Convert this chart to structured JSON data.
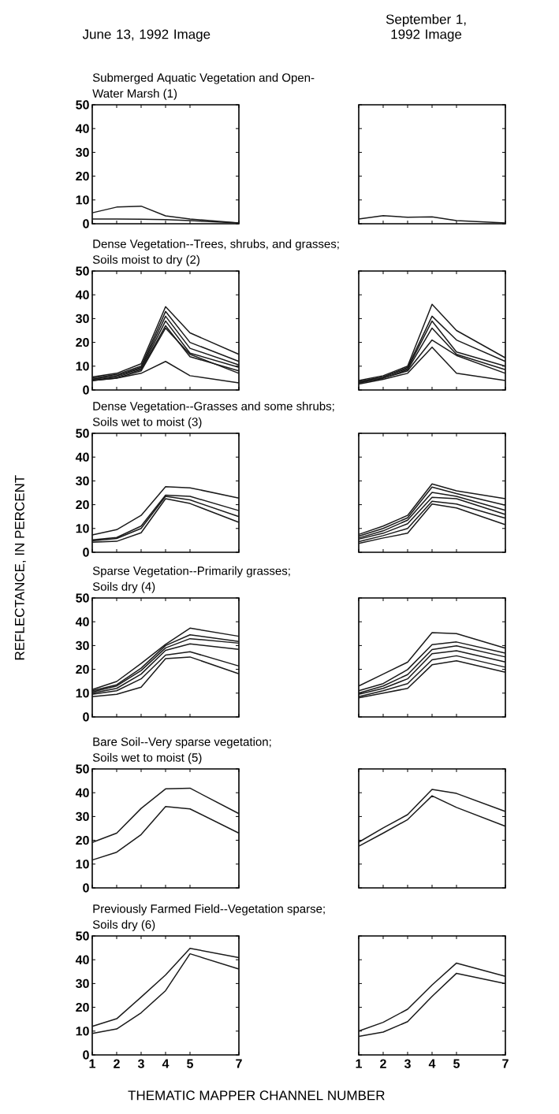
{
  "chart_data": [
    {
      "type": "line",
      "title": "Submerged Aquatic Vegetation and Open-",
      "subtitle": "Water Marsh (1)",
      "annotations": [
        "June 13, 1992 Image"
      ],
      "x": [
        1,
        2,
        3,
        4,
        5,
        7
      ],
      "xlim": [
        1,
        7
      ],
      "ylim": [
        0,
        50
      ],
      "xticks": [
        1,
        2,
        3,
        4,
        5,
        7
      ],
      "yticks": [
        0,
        10,
        20,
        30,
        40,
        50
      ],
      "tick_labels": "y",
      "series": [
        {
          "color": "#1a1a1a",
          "values": [
            4.6,
            7,
            7.4,
            3.3,
            2,
            0.3
          ]
        },
        {
          "color": "#1a1a1a",
          "values": [
            2,
            2,
            1.9,
            1.7,
            1.3,
            0.3
          ]
        }
      ]
    },
    {
      "type": "line",
      "annotations": [
        "September 1, 1992 Image"
      ],
      "x": [
        1,
        2,
        3,
        4,
        5,
        7
      ],
      "xlim": [
        1,
        7
      ],
      "ylim": [
        0,
        50
      ],
      "xticks": [
        1,
        2,
        3,
        4,
        5,
        7
      ],
      "yticks": [
        0,
        10,
        20,
        30,
        40,
        50
      ],
      "tick_labels": false,
      "series": [
        {
          "color": "#1a1a1a",
          "values": [
            2,
            3.4,
            2.7,
            2.9,
            1.3,
            0.3
          ]
        }
      ]
    },
    {
      "type": "line",
      "title": "Dense Vegetation--Trees, shrubs, and grasses;",
      "subtitle": "Soils moist to dry (2)",
      "x": [
        1,
        2,
        3,
        4,
        5,
        7
      ],
      "xlim": [
        1,
        7
      ],
      "ylim": [
        0,
        50
      ],
      "xticks": [
        1,
        2,
        3,
        4,
        5,
        7
      ],
      "yticks": [
        0,
        10,
        20,
        30,
        40,
        50
      ],
      "tick_labels": "y",
      "series": [
        {
          "color": "#1a1a1a",
          "values": [
            5.5,
            7,
            11,
            35,
            24,
            15
          ]
        },
        {
          "color": "#1a1a1a",
          "values": [
            5,
            6.5,
            10,
            33,
            20,
            12
          ]
        },
        {
          "color": "#1a1a1a",
          "values": [
            4.5,
            6,
            9.5,
            31,
            17.5,
            10.5
          ]
        },
        {
          "color": "#1a1a1a",
          "values": [
            4.5,
            6,
            9,
            29,
            15.5,
            9.5
          ]
        },
        {
          "color": "#1a1a1a",
          "values": [
            4,
            5.5,
            8.5,
            27,
            14,
            8
          ]
        },
        {
          "color": "#1a1a1a",
          "values": [
            4,
            5,
            8,
            26,
            15,
            7
          ]
        },
        {
          "color": "#1a1a1a",
          "values": [
            4,
            5,
            7,
            12,
            6,
            3
          ]
        }
      ]
    },
    {
      "type": "line",
      "x": [
        1,
        2,
        3,
        4,
        5,
        7
      ],
      "xlim": [
        1,
        7
      ],
      "ylim": [
        0,
        50
      ],
      "xticks": [
        1,
        2,
        3,
        4,
        5,
        7
      ],
      "yticks": [
        0,
        10,
        20,
        30,
        40,
        50
      ],
      "tick_labels": false,
      "series": [
        {
          "color": "#1a1a1a",
          "values": [
            4,
            6,
            10,
            36,
            25,
            13.5
          ]
        },
        {
          "color": "#1a1a1a",
          "values": [
            3.5,
            5.5,
            9.5,
            31,
            21,
            12
          ]
        },
        {
          "color": "#1a1a1a",
          "values": [
            3.5,
            5.5,
            9,
            29,
            16,
            10
          ]
        },
        {
          "color": "#1a1a1a",
          "values": [
            3,
            5,
            8.5,
            26,
            15,
            8.5
          ]
        },
        {
          "color": "#1a1a1a",
          "values": [
            3,
            5,
            8,
            21,
            14.5,
            7
          ]
        },
        {
          "color": "#1a1a1a",
          "values": [
            2.5,
            4.5,
            7,
            18,
            7,
            4
          ]
        }
      ]
    },
    {
      "type": "line",
      "title": "Dense Vegetation--Grasses and some shrubs;",
      "subtitle": "Soils wet to moist (3)",
      "ylabel": "REFLECTANCE, IN PERCENT",
      "x": [
        1,
        2,
        3,
        4,
        5,
        7
      ],
      "xlim": [
        1,
        7
      ],
      "ylim": [
        0,
        50
      ],
      "xticks": [
        1,
        2,
        3,
        4,
        5,
        7
      ],
      "yticks": [
        0,
        10,
        20,
        30,
        40,
        50
      ],
      "tick_labels": "y",
      "series": [
        {
          "color": "#1a1a1a",
          "values": [
            7.3,
            9.5,
            15.5,
            27.6,
            27.1,
            22.8
          ]
        },
        {
          "color": "#1a1a1a",
          "values": [
            5.2,
            6.2,
            11,
            24,
            23.5,
            17.5
          ]
        },
        {
          "color": "#1a1a1a",
          "values": [
            4.8,
            5.8,
            10,
            23.5,
            22,
            15
          ]
        },
        {
          "color": "#1a1a1a",
          "values": [
            4.2,
            4.6,
            8.2,
            22.5,
            20.5,
            12.6
          ]
        }
      ]
    },
    {
      "type": "line",
      "x": [
        1,
        2,
        3,
        4,
        5,
        7
      ],
      "xlim": [
        1,
        7
      ],
      "ylim": [
        0,
        50
      ],
      "xticks": [
        1,
        2,
        3,
        4,
        5,
        7
      ],
      "yticks": [
        0,
        10,
        20,
        30,
        40,
        50
      ],
      "tick_labels": false,
      "series": [
        {
          "color": "#1a1a1a",
          "values": [
            7.5,
            11,
            15.5,
            28.7,
            25.8,
            22.5
          ]
        },
        {
          "color": "#1a1a1a",
          "values": [
            6.8,
            10,
            14.5,
            27.4,
            24.7,
            19.8
          ]
        },
        {
          "color": "#1a1a1a",
          "values": [
            6,
            9,
            13.5,
            25.2,
            23.5,
            17.6
          ]
        },
        {
          "color": "#1a1a1a",
          "values": [
            5.5,
            8,
            12,
            23.1,
            22.5,
            15.9
          ]
        },
        {
          "color": "#1a1a1a",
          "values": [
            4.5,
            7,
            10,
            21.4,
            20.3,
            14.3
          ]
        },
        {
          "color": "#1a1a1a",
          "values": [
            3.7,
            6,
            8,
            20.3,
            18.6,
            11.6
          ]
        }
      ]
    },
    {
      "type": "line",
      "title": "Sparse Vegetation--Primarily grasses;",
      "subtitle": "Soils dry (4)",
      "x": [
        1,
        2,
        3,
        4,
        5,
        7
      ],
      "xlim": [
        1,
        7
      ],
      "ylim": [
        0,
        50
      ],
      "xticks": [
        1,
        2,
        3,
        4,
        5,
        7
      ],
      "yticks": [
        0,
        10,
        20,
        30,
        40,
        50
      ],
      "tick_labels": "y",
      "series": [
        {
          "color": "#1a1a1a",
          "values": [
            11.5,
            14.9,
            22.5,
            30.5,
            37.3,
            33.9
          ]
        },
        {
          "color": "#1a1a1a",
          "values": [
            11,
            13.5,
            20.5,
            30,
            34.5,
            31.7
          ]
        },
        {
          "color": "#1a1a1a",
          "values": [
            10.5,
            13,
            19.5,
            29,
            32.9,
            31
          ]
        },
        {
          "color": "#1a1a1a",
          "values": [
            10,
            12,
            18,
            28,
            30.7,
            28.4
          ]
        },
        {
          "color": "#1a1a1a",
          "values": [
            9.5,
            11,
            16,
            26,
            27.4,
            21.4
          ]
        },
        {
          "color": "#1a1a1a",
          "values": [
            8.5,
            9.5,
            12.5,
            24.5,
            25.2,
            18.1
          ]
        }
      ]
    },
    {
      "type": "line",
      "x": [
        1,
        2,
        3,
        4,
        5,
        7
      ],
      "xlim": [
        1,
        7
      ],
      "ylim": [
        0,
        50
      ],
      "xticks": [
        1,
        2,
        3,
        4,
        5,
        7
      ],
      "yticks": [
        0,
        10,
        20,
        30,
        40,
        50
      ],
      "tick_labels": false,
      "series": [
        {
          "color": "#1a1a1a",
          "values": [
            13,
            18,
            23,
            35.4,
            35,
            28.9
          ]
        },
        {
          "color": "#1a1a1a",
          "values": [
            11,
            14,
            19.9,
            30.4,
            31.5,
            26.8
          ]
        },
        {
          "color": "#1a1a1a",
          "values": [
            10,
            13,
            17.8,
            28.3,
            29.9,
            25.2
          ]
        },
        {
          "color": "#1a1a1a",
          "values": [
            9.5,
            12,
            16,
            26.6,
            27.8,
            23.1
          ]
        },
        {
          "color": "#1a1a1a",
          "values": [
            8.5,
            11,
            14,
            24,
            25.7,
            20.9
          ]
        },
        {
          "color": "#1a1a1a",
          "values": [
            8,
            10,
            12,
            21.9,
            23.6,
            18.8
          ]
        }
      ]
    },
    {
      "type": "line",
      "title": "Bare Soil--Very sparse vegetation;",
      "subtitle": "Soils wet to moist (5)",
      "x": [
        1,
        2,
        3,
        4,
        5,
        7
      ],
      "xlim": [
        1,
        7
      ],
      "ylim": [
        0,
        50
      ],
      "xticks": [
        1,
        2,
        3,
        4,
        5,
        7
      ],
      "yticks": [
        0,
        10,
        20,
        30,
        40,
        50
      ],
      "tick_labels": "y",
      "series": [
        {
          "color": "#1a1a1a",
          "values": [
            19.1,
            23,
            33.4,
            41.6,
            41.9,
            31.2
          ]
        },
        {
          "color": "#1a1a1a",
          "values": [
            11.7,
            15,
            22.4,
            34.2,
            33.2,
            23
          ]
        }
      ]
    },
    {
      "type": "line",
      "x": [
        1,
        2,
        3,
        4,
        5,
        7
      ],
      "xlim": [
        1,
        7
      ],
      "ylim": [
        0,
        50
      ],
      "xticks": [
        1,
        2,
        3,
        4,
        5,
        7
      ],
      "yticks": [
        0,
        10,
        20,
        30,
        40,
        50
      ],
      "tick_labels": false,
      "series": [
        {
          "color": "#1a1a1a",
          "values": [
            19.2,
            25.2,
            30.8,
            41.4,
            39.7,
            32.1
          ]
        },
        {
          "color": "#1a1a1a",
          "values": [
            17.5,
            23,
            28.7,
            38.7,
            33.8,
            25.9
          ]
        }
      ]
    },
    {
      "type": "line",
      "title": "Previously Farmed Field--Vegetation sparse;",
      "subtitle": "Soils dry (6)",
      "xlabel": "THEMATIC MAPPER CHANNEL NUMBER",
      "x": [
        1,
        2,
        3,
        4,
        5,
        7
      ],
      "xlim": [
        1,
        7
      ],
      "ylim": [
        0,
        50
      ],
      "xticks": [
        1,
        2,
        3,
        4,
        5,
        7
      ],
      "yticks": [
        0,
        10,
        20,
        30,
        40,
        50
      ],
      "series": [
        {
          "color": "#1a1a1a",
          "values": [
            12,
            15.2,
            24.3,
            33.6,
            44.8,
            40.9
          ]
        },
        {
          "color": "#1a1a1a",
          "values": [
            9,
            10.9,
            17.7,
            27,
            42.5,
            36.1
          ]
        }
      ]
    },
    {
      "type": "line",
      "x": [
        1,
        2,
        3,
        4,
        5,
        7
      ],
      "xlim": [
        1,
        7
      ],
      "ylim": [
        0,
        50
      ],
      "xticks": [
        1,
        2,
        3,
        4,
        5,
        7
      ],
      "yticks": [
        0,
        10,
        20,
        30,
        40,
        50
      ],
      "tick_labels": "x",
      "series": [
        {
          "color": "#1a1a1a",
          "values": [
            10,
            13.7,
            19.2,
            29.4,
            38.6,
            33
          ]
        },
        {
          "color": "#1a1a1a",
          "values": [
            7.8,
            9.6,
            14,
            24.6,
            34.3,
            30
          ]
        }
      ]
    }
  ]
}
